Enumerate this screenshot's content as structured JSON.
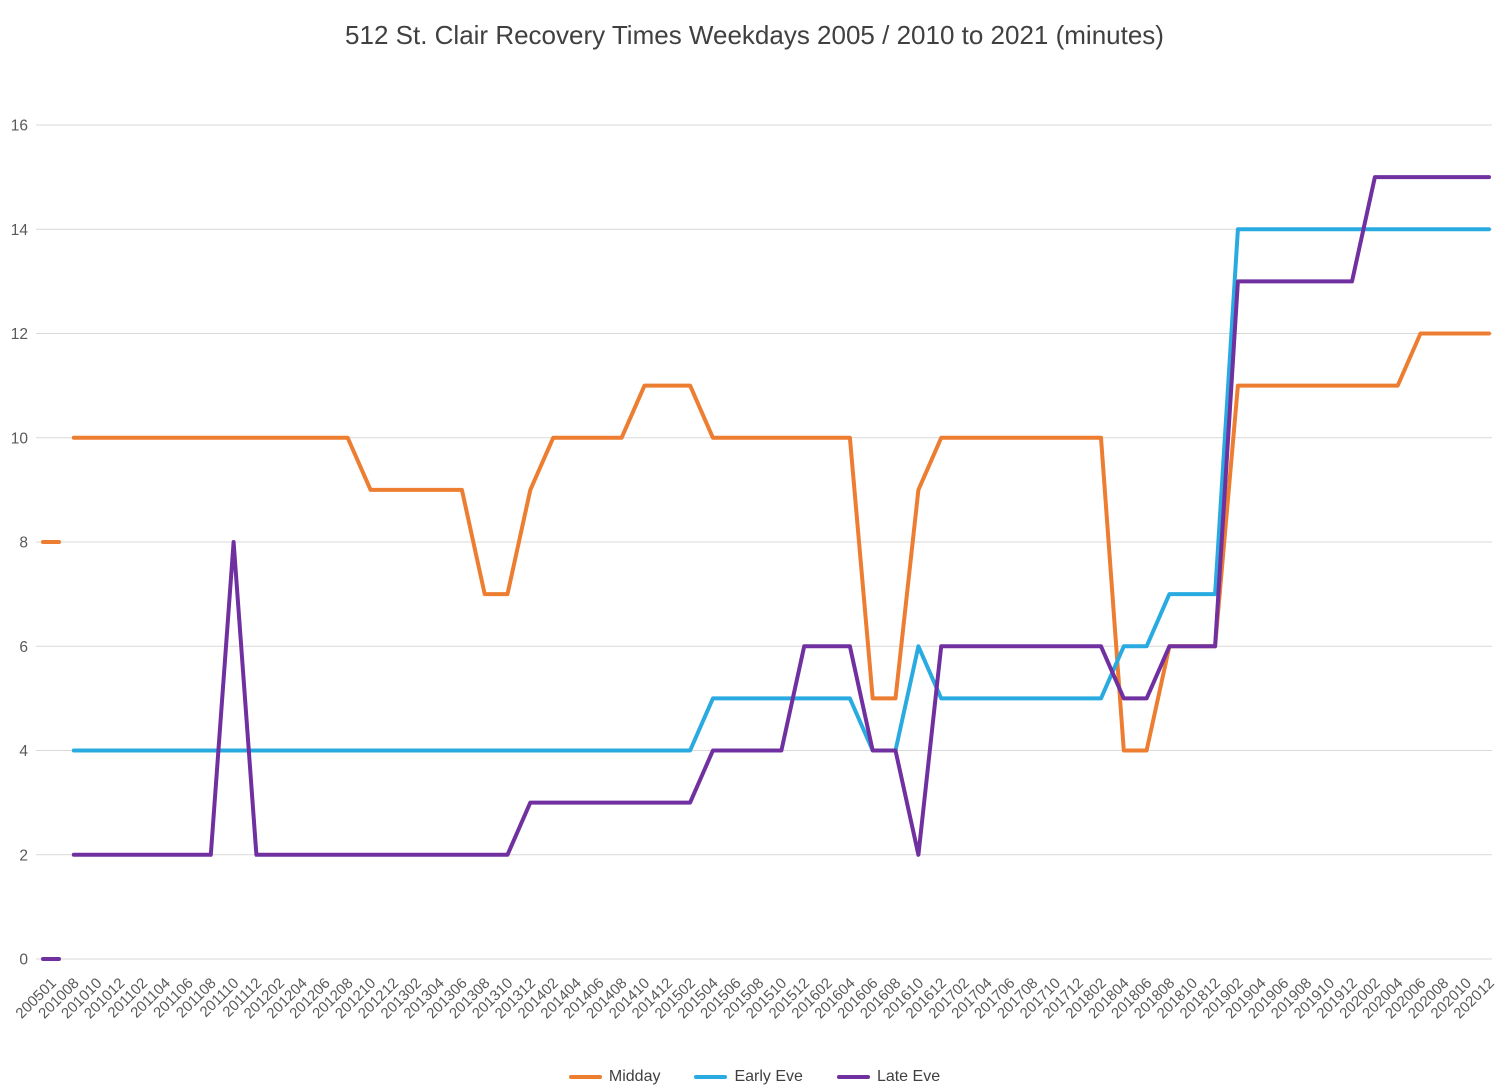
{
  "chart_data": {
    "type": "line",
    "title": "512 St. Clair Recovery Times Weekdays 2005 / 2010 to 2021 (minutes)",
    "xlabel": "",
    "ylabel": "",
    "ylim": [
      0,
      16
    ],
    "ytick_step": 2,
    "grid": true,
    "legend_position": "bottom",
    "gap_after": [
      "200501"
    ],
    "colors": {
      "grid": "#D9D9D9",
      "axis_text": "#595959",
      "title_text": "#404040"
    },
    "x": [
      "200501",
      "201008",
      "201010",
      "201012",
      "201102",
      "201104",
      "201106",
      "201108",
      "201110",
      "201112",
      "201202",
      "201204",
      "201206",
      "201208",
      "201210",
      "201212",
      "201302",
      "201304",
      "201306",
      "201308",
      "201310",
      "201312",
      "201402",
      "201404",
      "201406",
      "201408",
      "201410",
      "201412",
      "201502",
      "201504",
      "201506",
      "201508",
      "201510",
      "201512",
      "201602",
      "201604",
      "201606",
      "201608",
      "201610",
      "201612",
      "201702",
      "201704",
      "201706",
      "201708",
      "201710",
      "201712",
      "201802",
      "201804",
      "201806",
      "201808",
      "201810",
      "201812",
      "201902",
      "201904",
      "201906",
      "201908",
      "201910",
      "201912",
      "202002",
      "202004",
      "202006",
      "202008",
      "202010",
      "202012"
    ],
    "series": [
      {
        "name": "Midday",
        "color": "#ED7D31",
        "values": [
          8,
          10,
          10,
          10,
          10,
          10,
          10,
          10,
          10,
          10,
          10,
          10,
          10,
          10,
          9,
          9,
          9,
          9,
          9,
          7,
          7,
          9,
          10,
          10,
          10,
          10,
          11,
          11,
          11,
          10,
          10,
          10,
          10,
          10,
          10,
          10,
          5,
          5,
          9,
          10,
          10,
          10,
          10,
          10,
          10,
          10,
          10,
          4,
          4,
          6,
          6,
          6,
          11,
          11,
          11,
          11,
          11,
          11,
          11,
          11,
          12,
          12,
          12,
          12
        ]
      },
      {
        "name": "Early Eve",
        "color": "#29ABE2",
        "values": [
          null,
          4,
          4,
          4,
          4,
          4,
          4,
          4,
          4,
          4,
          4,
          4,
          4,
          4,
          4,
          4,
          4,
          4,
          4,
          4,
          4,
          4,
          4,
          4,
          4,
          4,
          4,
          4,
          4,
          5,
          5,
          5,
          5,
          5,
          5,
          5,
          4,
          4,
          6,
          5,
          5,
          5,
          5,
          5,
          5,
          5,
          5,
          6,
          6,
          7,
          7,
          7,
          14,
          14,
          14,
          14,
          14,
          14,
          14,
          14,
          14,
          14,
          14,
          14
        ]
      },
      {
        "name": "Late Eve",
        "color": "#7030A0",
        "values": [
          0,
          2,
          2,
          2,
          2,
          2,
          2,
          2,
          8,
          2,
          2,
          2,
          2,
          2,
          2,
          2,
          2,
          2,
          2,
          2,
          2,
          3,
          3,
          3,
          3,
          3,
          3,
          3,
          3,
          4,
          4,
          4,
          4,
          6,
          6,
          6,
          4,
          4,
          2,
          6,
          6,
          6,
          6,
          6,
          6,
          6,
          6,
          5,
          5,
          6,
          6,
          6,
          13,
          13,
          13,
          13,
          13,
          13,
          15,
          15,
          15,
          15,
          15,
          15
        ]
      }
    ]
  }
}
